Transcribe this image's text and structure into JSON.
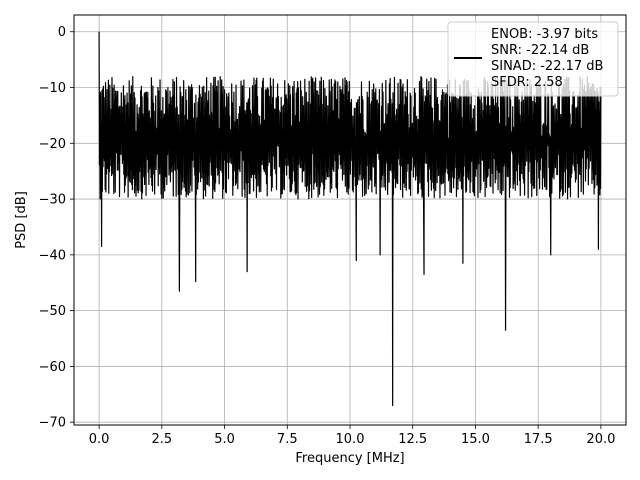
{
  "chart_data": {
    "type": "line",
    "xlabel": "Frequency [MHz]",
    "ylabel": "PSD [dB]",
    "xlim": [
      -1.0,
      21.0
    ],
    "ylim": [
      -70.5,
      3.0
    ],
    "xticks": [
      0.0,
      2.5,
      5.0,
      7.5,
      10.0,
      12.5,
      15.0,
      17.5,
      20.0
    ],
    "xtick_labels": [
      "0.0",
      "2.5",
      "5.0",
      "7.5",
      "10.0",
      "12.5",
      "15.0",
      "17.5",
      "20.0"
    ],
    "yticks": [
      0,
      -10,
      -20,
      -30,
      -40,
      -50,
      -60,
      -70
    ],
    "ytick_labels": [
      "0",
      "−10",
      "−20",
      "−30",
      "−40",
      "−50",
      "−60",
      "−70"
    ],
    "grid": true,
    "legend_position": "top-right",
    "line_color": "#000000",
    "legend": {
      "lines": [
        "ENOB: -3.97 bits",
        "SNR: -22.14 dB",
        "SINAD: -22.17 dB",
        "SFDR: 2.58"
      ]
    },
    "series": [
      {
        "x_range": [
          0.0,
          20.0
        ],
        "baseline_db": -20.0,
        "noise_band_db": [
          -30.0,
          -8.0
        ],
        "peaks": [
          {
            "x": 0.0,
            "y": 0.0
          },
          {
            "x": 0.1,
            "y": -38.5
          },
          {
            "x": 3.2,
            "y": -46.5
          },
          {
            "x": 3.85,
            "y": -44.8
          },
          {
            "x": 5.9,
            "y": -43.0
          },
          {
            "x": 10.25,
            "y": -41.0
          },
          {
            "x": 11.2,
            "y": -40.0
          },
          {
            "x": 11.7,
            "y": -67.0
          },
          {
            "x": 12.95,
            "y": -43.5
          },
          {
            "x": 14.5,
            "y": -41.5
          },
          {
            "x": 16.2,
            "y": -53.5
          },
          {
            "x": 18.0,
            "y": -40.0
          },
          {
            "x": 19.9,
            "y": -39.0
          }
        ]
      }
    ]
  }
}
